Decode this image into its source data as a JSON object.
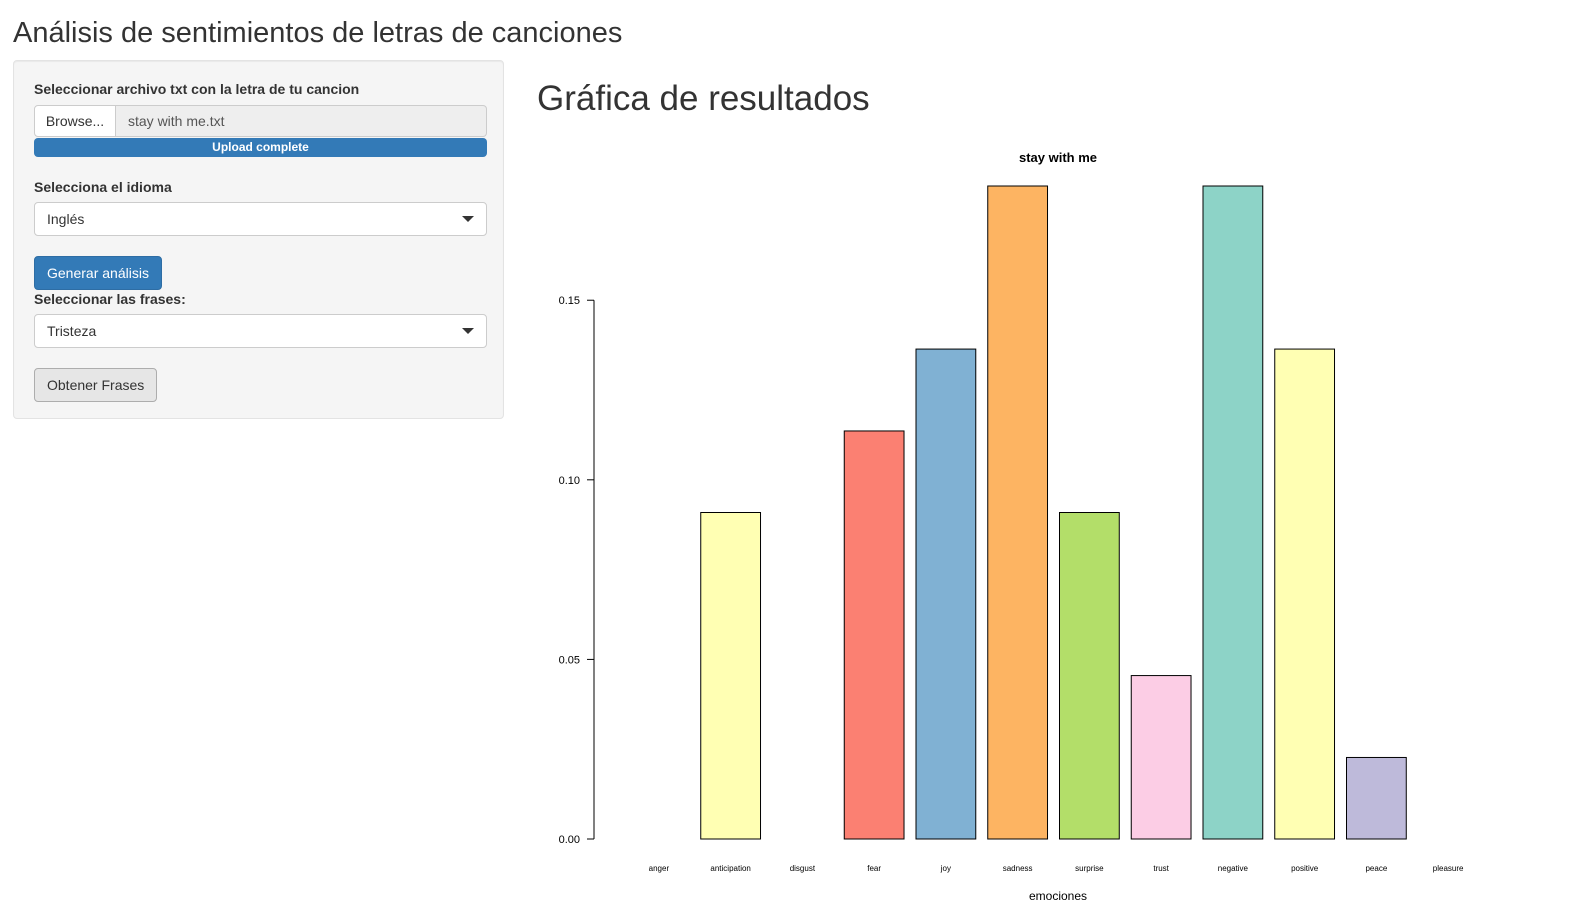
{
  "app_title": "Análisis de sentimientos de letras de canciones",
  "sidebar": {
    "file_label": "Seleccionar archivo txt con la letra de tu cancion",
    "browse_label": "Browse...",
    "file_name": "stay with me.txt",
    "upload_status": "Upload complete",
    "upload_progress": 1.0,
    "language_label": "Selecciona el idioma",
    "language_value": "Inglés",
    "generate_button": "Generar análisis",
    "phrases_label": "Seleccionar las frases:",
    "phrases_value": "Tristeza",
    "get_phrases_button": "Obtener Frases"
  },
  "main": {
    "title": "Gráfica de resultados"
  },
  "chart_data": {
    "type": "bar",
    "title": "stay with me",
    "xlabel": "emociones",
    "ylabel": "",
    "categories": [
      "anger",
      "anticipation",
      "disgust",
      "fear",
      "joy",
      "sadness",
      "surprise",
      "trust",
      "negative",
      "positive",
      "peace",
      "pleasure"
    ],
    "values": [
      0.0,
      0.0909,
      0.0,
      0.1136,
      0.1364,
      0.1818,
      0.0909,
      0.0455,
      0.1818,
      0.1364,
      0.0227,
      0.0
    ],
    "colors": [
      "#8DD3C7",
      "#FFFFB3",
      "#BEBADA",
      "#FB8072",
      "#80B1D3",
      "#FDB462",
      "#B3DE69",
      "#FCCDE5",
      "#8DD3C7",
      "#FFFFB3",
      "#BEBADA",
      "#FB8072"
    ],
    "yticks": [
      "0.00",
      "0.05",
      "0.10",
      "0.15"
    ],
    "ylim": [
      0,
      0.1818
    ],
    "grid": false,
    "legend": "none"
  }
}
